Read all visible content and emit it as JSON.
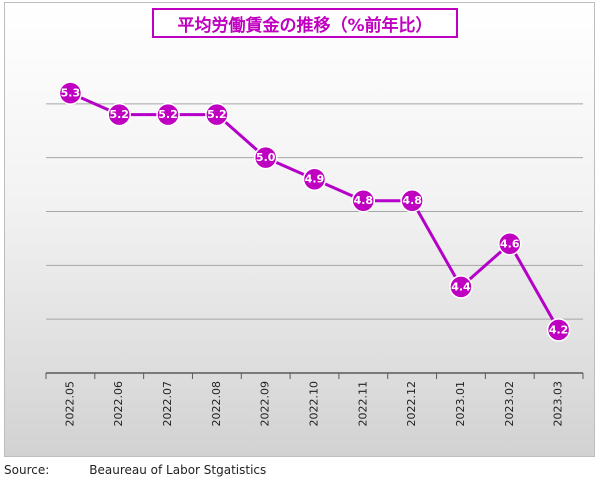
{
  "title": "平均労働賃金の推移（%前年比）",
  "source_label": "Source:",
  "source_text": "Beaureau of Labor Stgatistics",
  "colors": {
    "accent": "#c000c0",
    "line": "#b400c8",
    "grid": "#a6a6a6",
    "axis": "#595959"
  },
  "chart_data": {
    "type": "line",
    "title": "平均労働賃金の推移（%前年比）",
    "xlabel": "",
    "ylabel": "",
    "categories": [
      "2022.05",
      "2022.06",
      "2022.07",
      "2022.08",
      "2022.09",
      "2022.10",
      "2022.11",
      "2022.12",
      "2023.01",
      "2023.02",
      "2023.03"
    ],
    "series": [
      {
        "values": [
          5.3,
          5.2,
          5.2,
          5.2,
          5.0,
          4.9,
          4.8,
          4.8,
          4.4,
          4.6,
          4.2
        ]
      }
    ],
    "ylim": [
      4.0,
      5.5
    ],
    "grid": true,
    "y_tick_labels_shown": false,
    "data_labels": true,
    "marker": "circle",
    "legend": "none"
  }
}
